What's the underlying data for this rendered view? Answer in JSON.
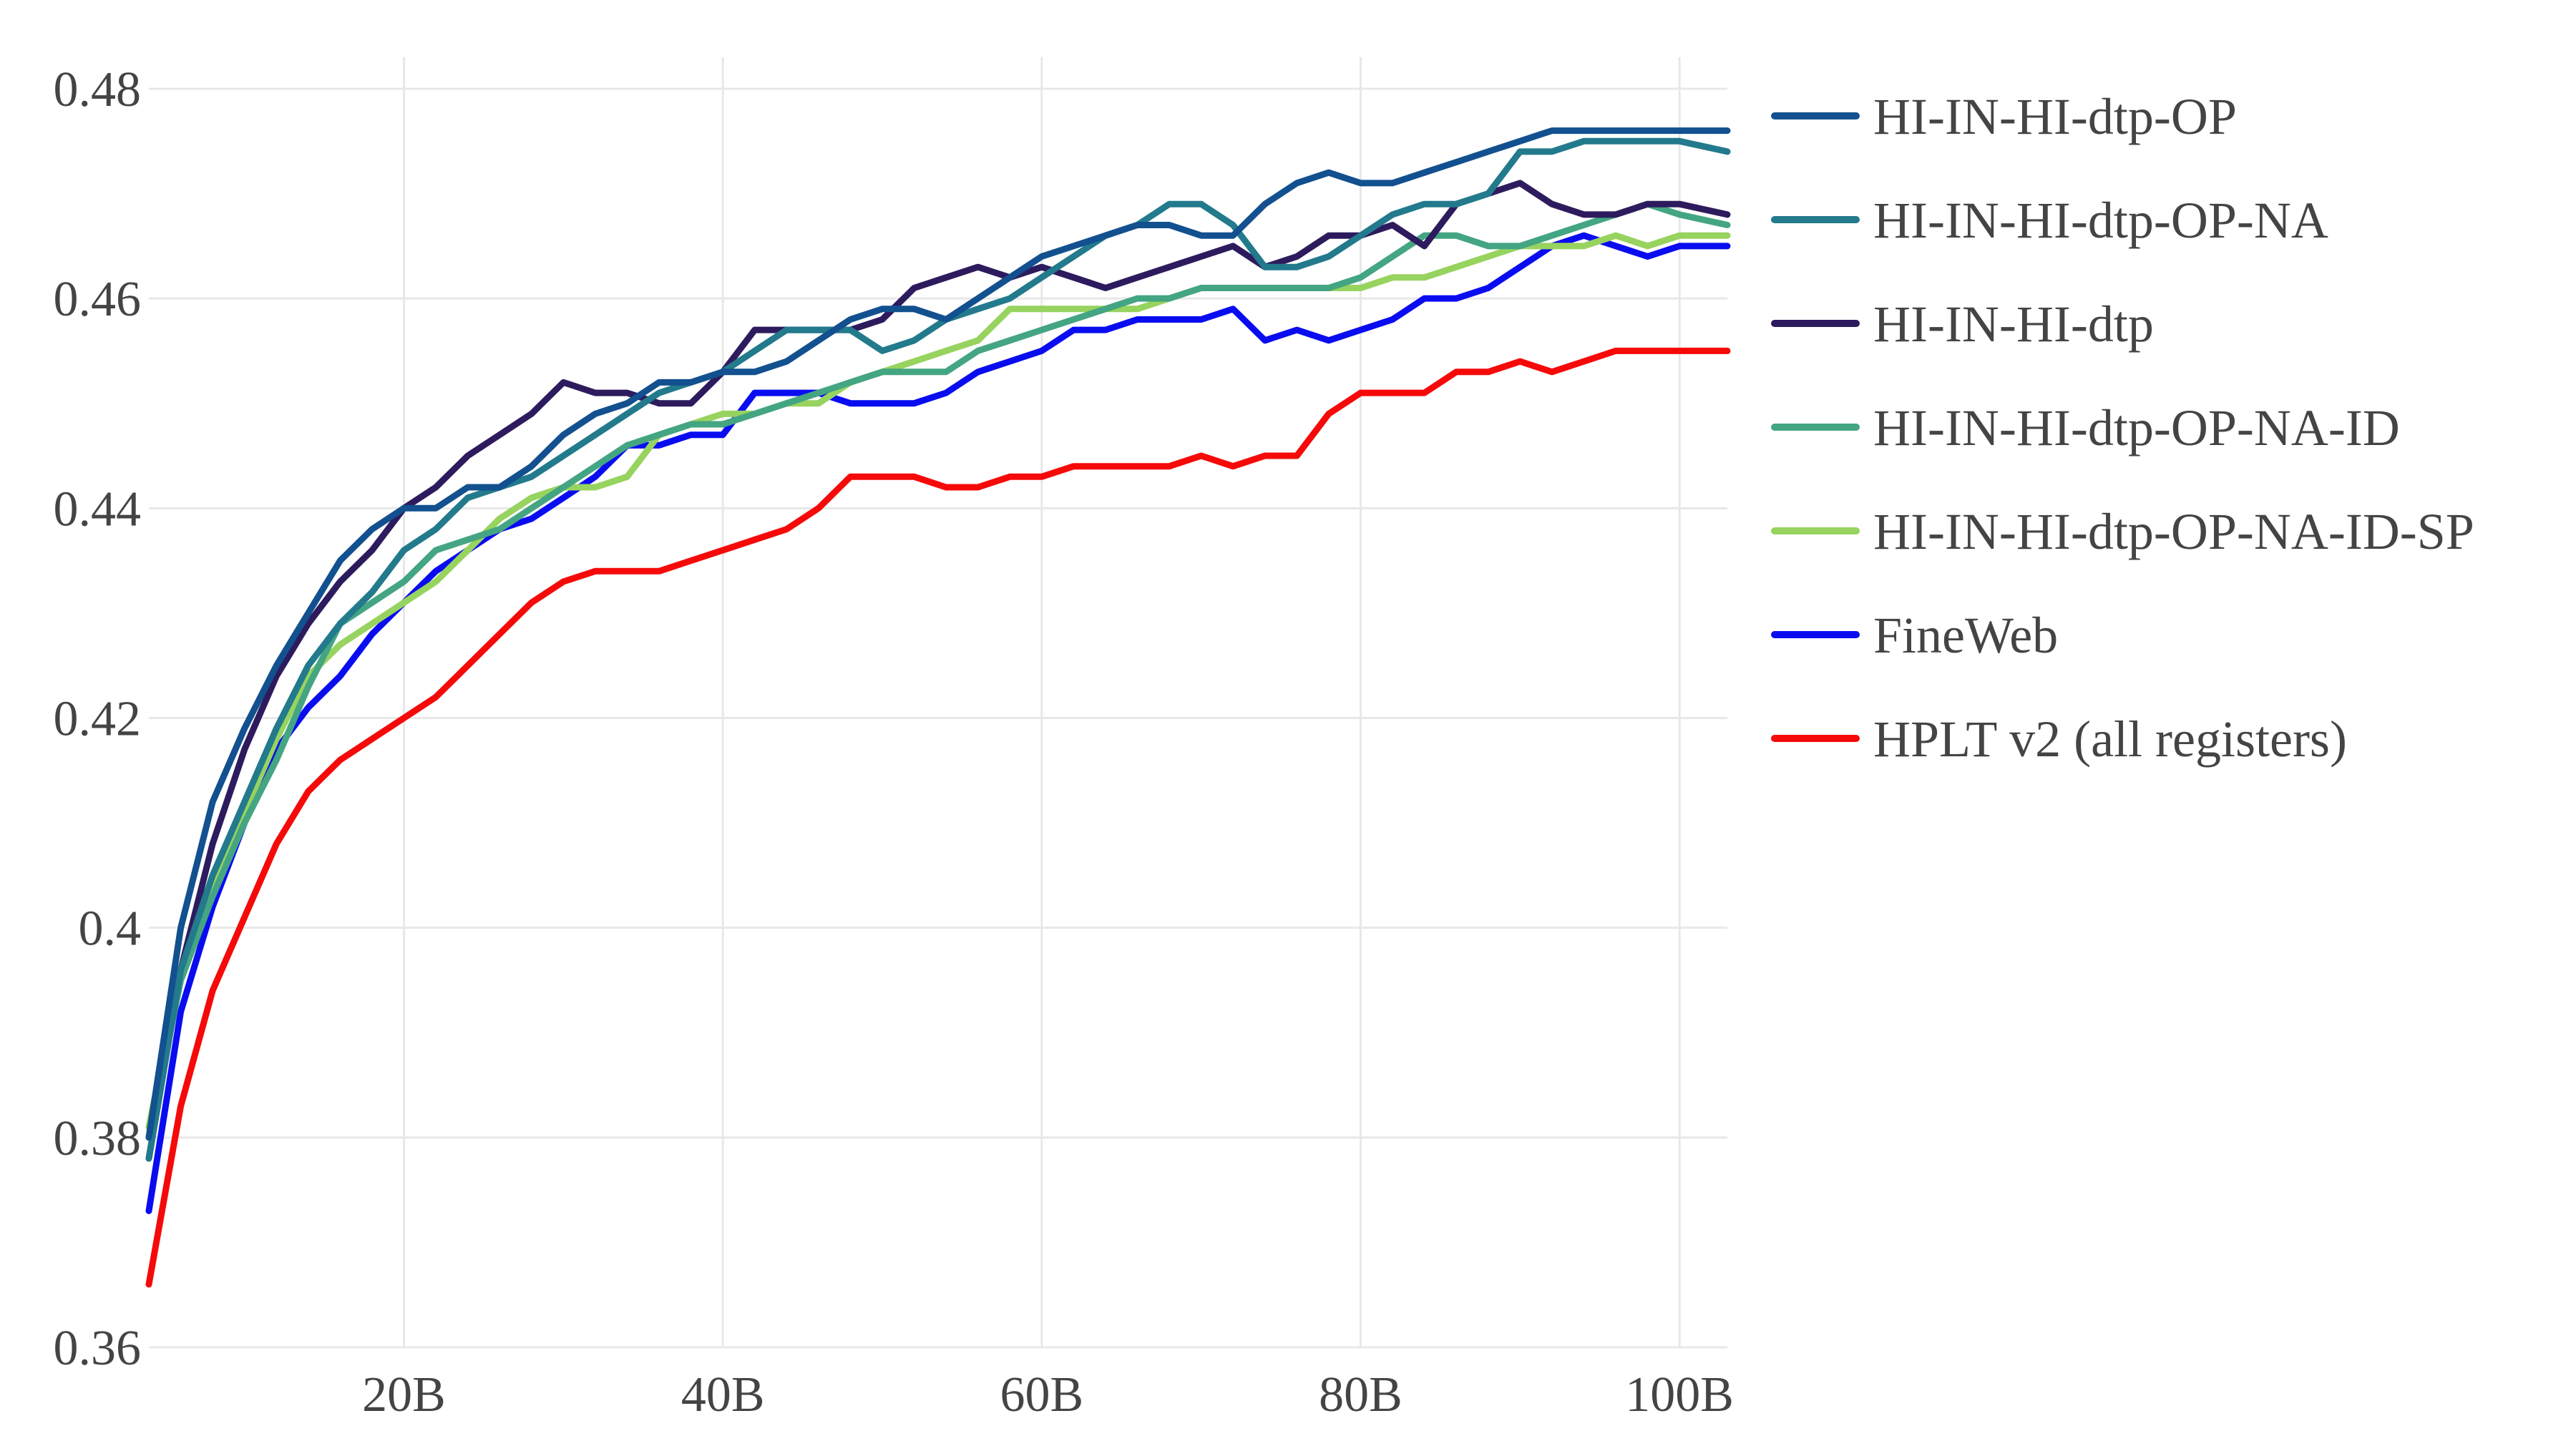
{
  "chart_data": {
    "type": "line",
    "title": "",
    "xlabel": "",
    "ylabel": "",
    "xlim": [
      4,
      103
    ],
    "ylim": [
      0.36,
      0.483
    ],
    "x_ticks": [
      {
        "value": 20,
        "label": "20B"
      },
      {
        "value": 40,
        "label": "40B"
      },
      {
        "value": 60,
        "label": "60B"
      },
      {
        "value": 80,
        "label": "80B"
      },
      {
        "value": 100,
        "label": "100B"
      }
    ],
    "y_ticks": [
      {
        "value": 0.36,
        "label": "0.36"
      },
      {
        "value": 0.38,
        "label": "0.38"
      },
      {
        "value": 0.4,
        "label": "0.4"
      },
      {
        "value": 0.42,
        "label": "0.42"
      },
      {
        "value": 0.44,
        "label": "0.44"
      },
      {
        "value": 0.46,
        "label": "0.46"
      },
      {
        "value": 0.48,
        "label": "0.48"
      }
    ],
    "grid": true,
    "legend_position": "right",
    "x": [
      4,
      6,
      8,
      10,
      12,
      14,
      16,
      18,
      20,
      22,
      24,
      26,
      28,
      30,
      32,
      34,
      36,
      38,
      40,
      42,
      44,
      46,
      48,
      50,
      52,
      54,
      56,
      58,
      60,
      62,
      64,
      66,
      68,
      70,
      72,
      74,
      76,
      78,
      80,
      82,
      84,
      86,
      88,
      90,
      92,
      94,
      96,
      98,
      100,
      103
    ],
    "series": [
      {
        "name": "HI-IN-HI-dtp-OP",
        "color": "#12508f",
        "values": [
          0.38,
          0.4,
          0.412,
          0.419,
          0.425,
          0.43,
          0.435,
          0.438,
          0.44,
          0.44,
          0.442,
          0.442,
          0.444,
          0.447,
          0.449,
          0.45,
          0.452,
          0.452,
          0.453,
          0.453,
          0.454,
          0.456,
          0.458,
          0.459,
          0.459,
          0.458,
          0.46,
          0.462,
          0.464,
          0.465,
          0.466,
          0.467,
          0.467,
          0.466,
          0.466,
          0.469,
          0.471,
          0.472,
          0.471,
          0.471,
          0.472,
          0.473,
          0.474,
          0.475,
          0.476,
          0.476,
          0.476,
          0.476,
          0.476,
          0.476
        ]
      },
      {
        "name": "HI-IN-HI-dtp-OP-NA",
        "color": "#227a8c",
        "values": [
          0.378,
          0.396,
          0.405,
          0.412,
          0.419,
          0.425,
          0.429,
          0.432,
          0.436,
          0.438,
          0.441,
          0.442,
          0.443,
          0.445,
          0.447,
          0.449,
          0.451,
          0.452,
          0.453,
          0.455,
          0.457,
          0.457,
          0.457,
          0.455,
          0.456,
          0.458,
          0.459,
          0.46,
          0.462,
          0.464,
          0.466,
          0.467,
          0.469,
          0.469,
          0.467,
          0.463,
          0.463,
          0.464,
          0.466,
          0.468,
          0.469,
          0.469,
          0.47,
          0.474,
          0.474,
          0.475,
          0.475,
          0.475,
          0.475,
          0.474
        ]
      },
      {
        "name": "HI-IN-HI-dtp",
        "color": "#2d1b5e",
        "values": [
          0.378,
          0.396,
          0.408,
          0.417,
          0.424,
          0.429,
          0.433,
          0.436,
          0.44,
          0.442,
          0.445,
          0.447,
          0.449,
          0.452,
          0.451,
          0.451,
          0.45,
          0.45,
          0.453,
          0.457,
          0.457,
          0.457,
          0.457,
          0.458,
          0.461,
          0.462,
          0.463,
          0.462,
          0.463,
          0.462,
          0.461,
          0.462,
          0.463,
          0.464,
          0.465,
          0.463,
          0.464,
          0.466,
          0.466,
          0.467,
          0.465,
          0.469,
          0.47,
          0.471,
          0.469,
          0.468,
          0.468,
          0.469,
          0.469,
          0.468
        ]
      },
      {
        "name": "HI-IN-HI-dtp-OP-NA-ID",
        "color": "#44a582",
        "values": [
          0.38,
          0.395,
          0.403,
          0.41,
          0.416,
          0.423,
          0.429,
          0.431,
          0.433,
          0.436,
          0.437,
          0.438,
          0.44,
          0.442,
          0.444,
          0.446,
          0.447,
          0.448,
          0.448,
          0.449,
          0.45,
          0.451,
          0.452,
          0.453,
          0.453,
          0.453,
          0.455,
          0.456,
          0.457,
          0.458,
          0.459,
          0.46,
          0.46,
          0.461,
          0.461,
          0.461,
          0.461,
          0.461,
          0.462,
          0.464,
          0.466,
          0.466,
          0.465,
          0.465,
          0.466,
          0.467,
          0.468,
          0.469,
          0.468,
          0.467
        ]
      },
      {
        "name": "HI-IN-HI-dtp-OP-NA-ID-SP",
        "color": "#97d35f",
        "values": [
          0.381,
          0.396,
          0.404,
          0.411,
          0.418,
          0.424,
          0.427,
          0.429,
          0.431,
          0.433,
          0.436,
          0.439,
          0.441,
          0.442,
          0.442,
          0.443,
          0.447,
          0.448,
          0.449,
          0.449,
          0.45,
          0.45,
          0.452,
          0.453,
          0.454,
          0.455,
          0.456,
          0.459,
          0.459,
          0.459,
          0.459,
          0.459,
          0.46,
          0.461,
          0.461,
          0.461,
          0.461,
          0.461,
          0.461,
          0.462,
          0.462,
          0.463,
          0.464,
          0.465,
          0.465,
          0.465,
          0.466,
          0.465,
          0.466,
          0.466
        ]
      },
      {
        "name": "FineWeb",
        "color": "#0a0cf0",
        "values": [
          0.373,
          0.392,
          0.402,
          0.41,
          0.417,
          0.421,
          0.424,
          0.428,
          0.431,
          0.434,
          0.436,
          0.438,
          0.439,
          0.441,
          0.443,
          0.446,
          0.446,
          0.447,
          0.447,
          0.451,
          0.451,
          0.451,
          0.45,
          0.45,
          0.45,
          0.451,
          0.453,
          0.454,
          0.455,
          0.457,
          0.457,
          0.458,
          0.458,
          0.458,
          0.459,
          0.456,
          0.457,
          0.456,
          0.457,
          0.458,
          0.46,
          0.46,
          0.461,
          0.463,
          0.465,
          0.466,
          0.465,
          0.464,
          0.465,
          0.465
        ]
      },
      {
        "name": "HPLT v2 (all registers)",
        "color": "#f50a0a",
        "values": [
          0.366,
          0.383,
          0.394,
          0.401,
          0.408,
          0.413,
          0.416,
          0.418,
          0.42,
          0.422,
          0.425,
          0.428,
          0.431,
          0.433,
          0.434,
          0.434,
          0.434,
          0.435,
          0.436,
          0.437,
          0.438,
          0.44,
          0.443,
          0.443,
          0.443,
          0.442,
          0.442,
          0.443,
          0.443,
          0.444,
          0.444,
          0.444,
          0.444,
          0.445,
          0.444,
          0.445,
          0.445,
          0.449,
          0.451,
          0.451,
          0.451,
          0.453,
          0.453,
          0.454,
          0.453,
          0.454,
          0.455,
          0.455,
          0.455,
          0.455
        ]
      }
    ]
  }
}
